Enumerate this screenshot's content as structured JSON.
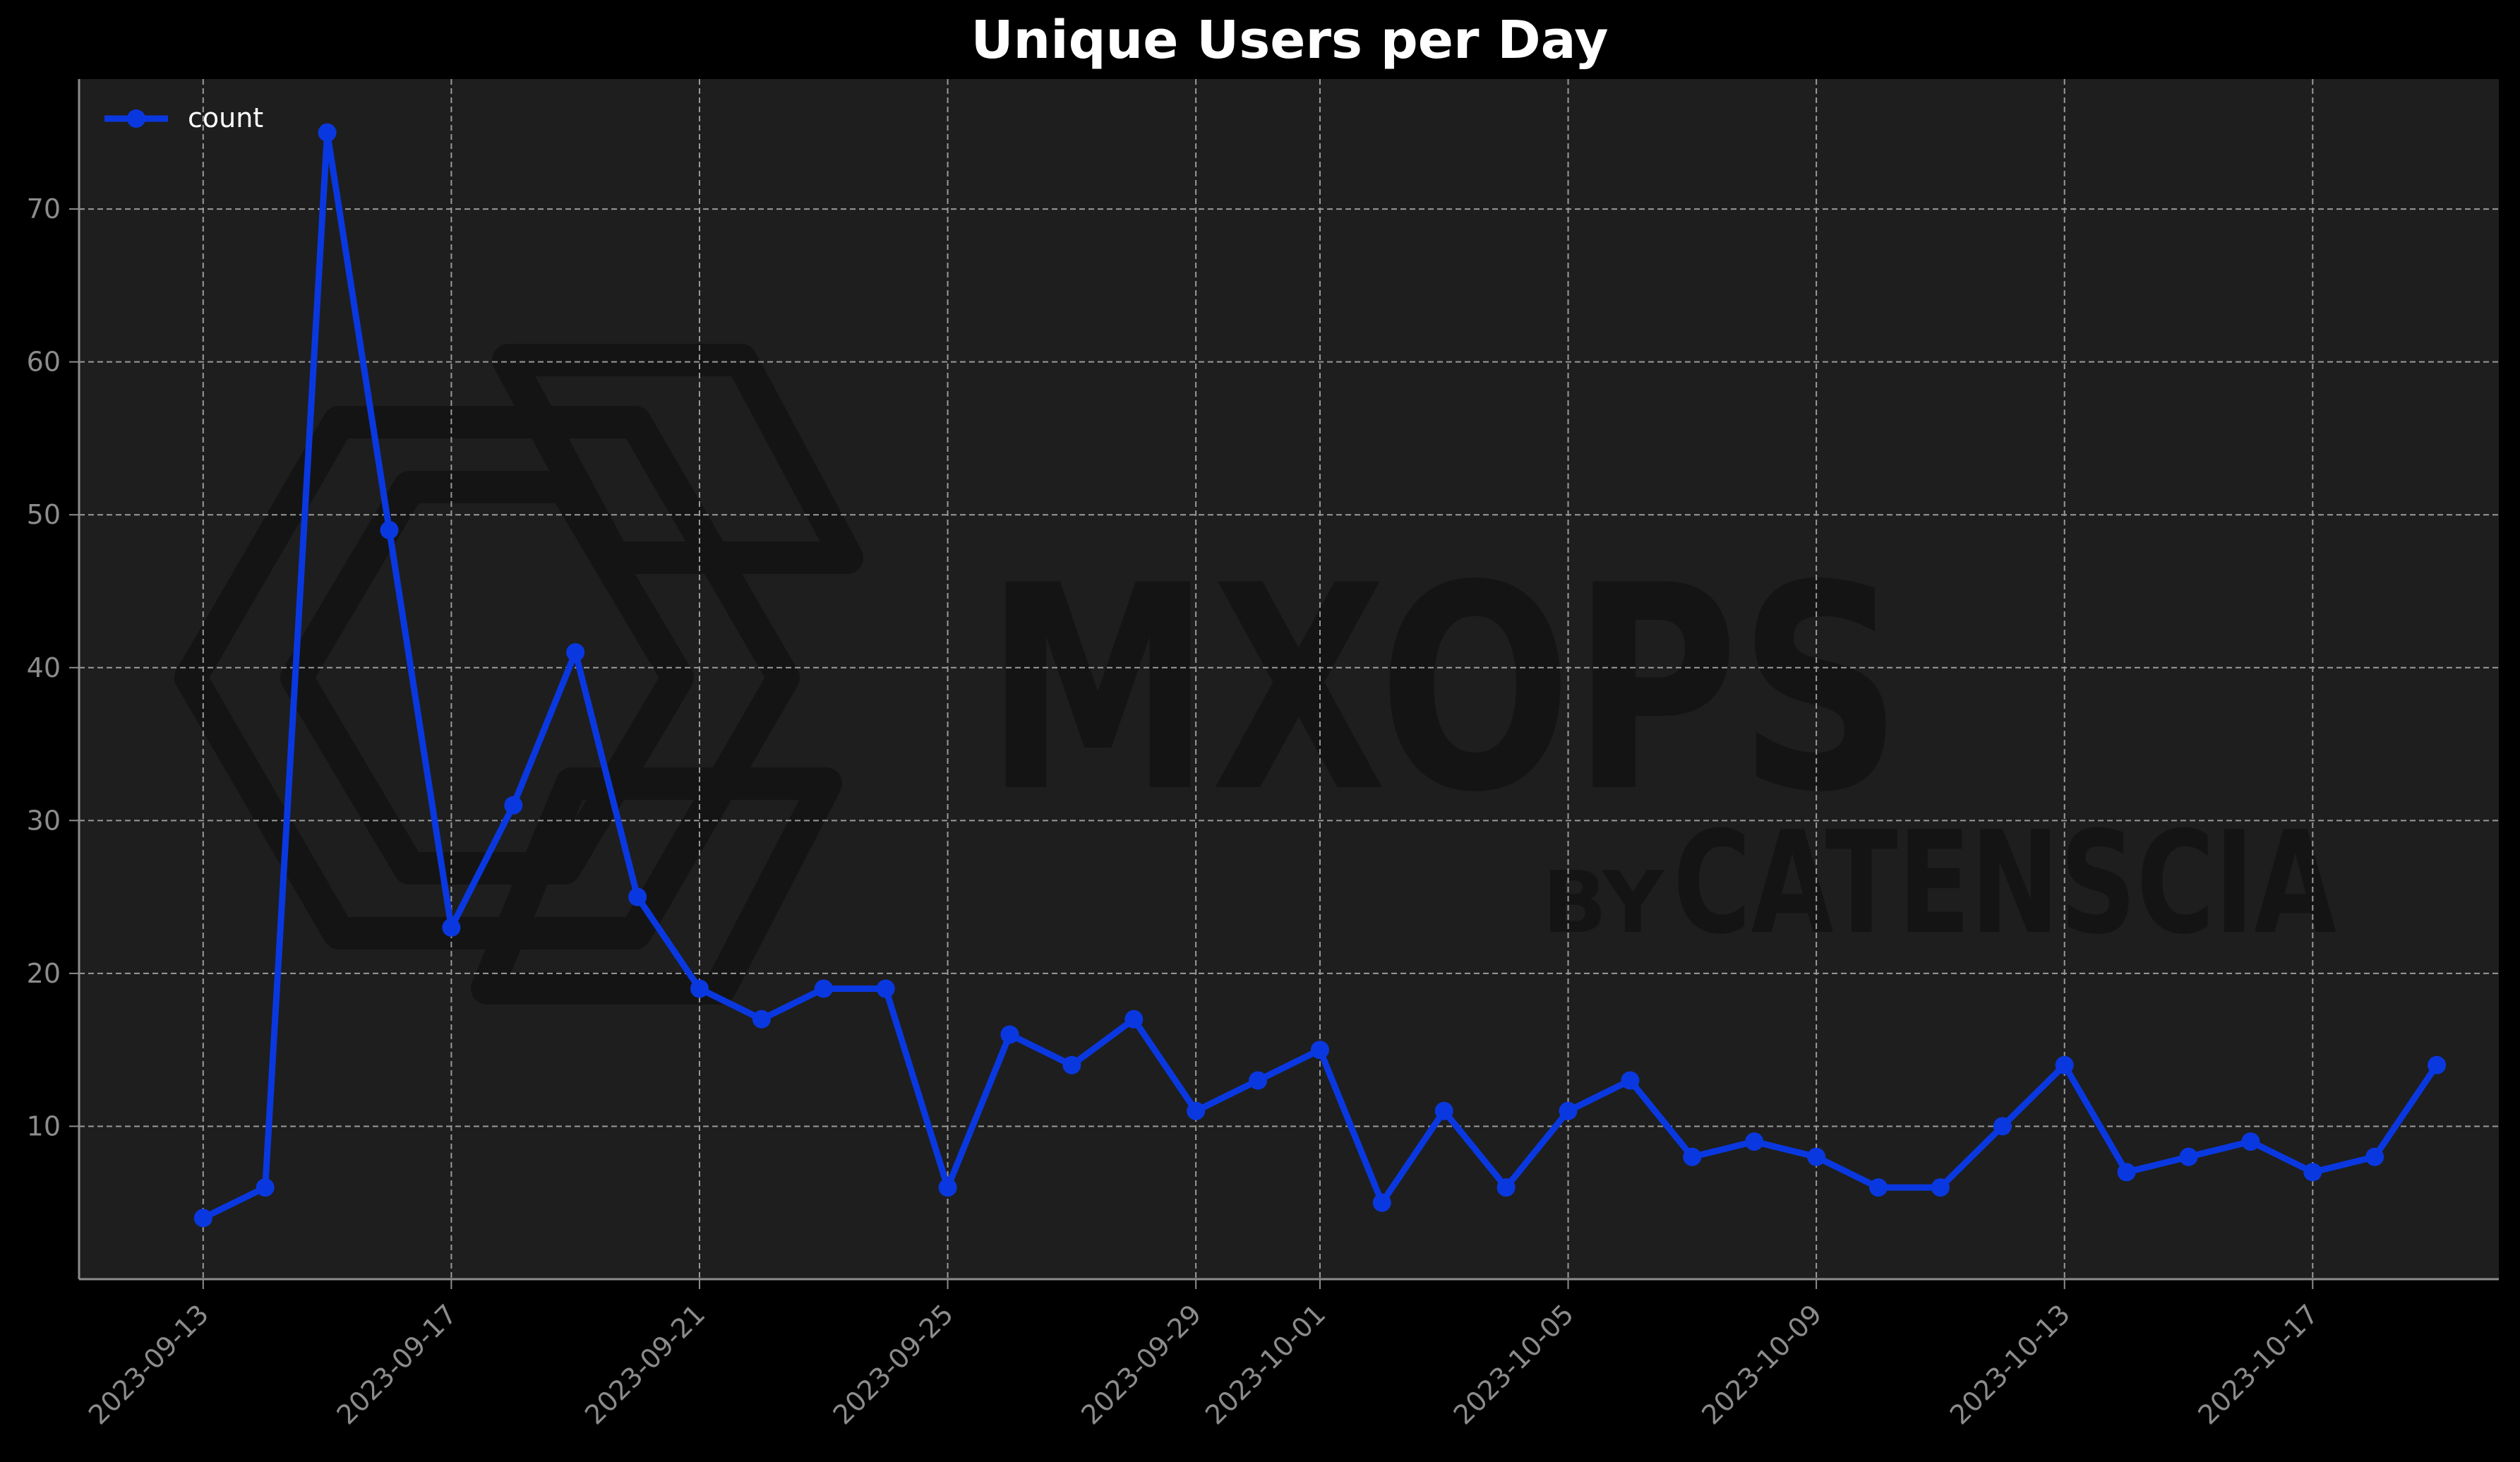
{
  "colors": {
    "background": "#000000",
    "plot_background": "#1e1e1e",
    "series": "#0a38e0",
    "grid": "#9a9a9a",
    "axis": "#8c8c8c",
    "title": "#ffffff",
    "watermark": "#141414"
  },
  "watermark": {
    "main": "MXOPS",
    "by": "BY",
    "brand": "CATENSCIA"
  },
  "chart_data": {
    "type": "line",
    "title": "Unique Users per Day",
    "xlabel": "",
    "ylabel": "",
    "x": [
      "2023-09-13",
      "2023-09-14",
      "2023-09-15",
      "2023-09-16",
      "2023-09-17",
      "2023-09-18",
      "2023-09-19",
      "2023-09-20",
      "2023-09-21",
      "2023-09-22",
      "2023-09-23",
      "2023-09-24",
      "2023-09-25",
      "2023-09-26",
      "2023-09-27",
      "2023-09-28",
      "2023-09-29",
      "2023-09-30",
      "2023-10-01",
      "2023-10-02",
      "2023-10-03",
      "2023-10-04",
      "2023-10-05",
      "2023-10-06",
      "2023-10-07",
      "2023-10-08",
      "2023-10-09",
      "2023-10-10",
      "2023-10-11",
      "2023-10-12",
      "2023-10-13",
      "2023-10-14",
      "2023-10-15",
      "2023-10-16",
      "2023-10-17",
      "2023-10-18",
      "2023-10-19"
    ],
    "series": [
      {
        "name": "count",
        "values": [
          4,
          6,
          75,
          49,
          23,
          31,
          41,
          25,
          19,
          17,
          19,
          19,
          6,
          16,
          14,
          17,
          11,
          13,
          15,
          5,
          11,
          6,
          11,
          13,
          8,
          9,
          8,
          6,
          6,
          10,
          14,
          7,
          8,
          9,
          7,
          8,
          14
        ]
      }
    ],
    "xticks": [
      "2023-09-13",
      "2023-09-17",
      "2023-09-21",
      "2023-09-25",
      "2023-09-29",
      "2023-10-01",
      "2023-10-05",
      "2023-10-09",
      "2023-10-13",
      "2023-10-17"
    ],
    "yticks": [
      10,
      20,
      30,
      40,
      50,
      60,
      70
    ],
    "xlim": [
      "2023-09-11",
      "2023-10-20"
    ],
    "ylim": [
      0,
      78.5
    ],
    "grid": true,
    "legend": "top-left"
  }
}
